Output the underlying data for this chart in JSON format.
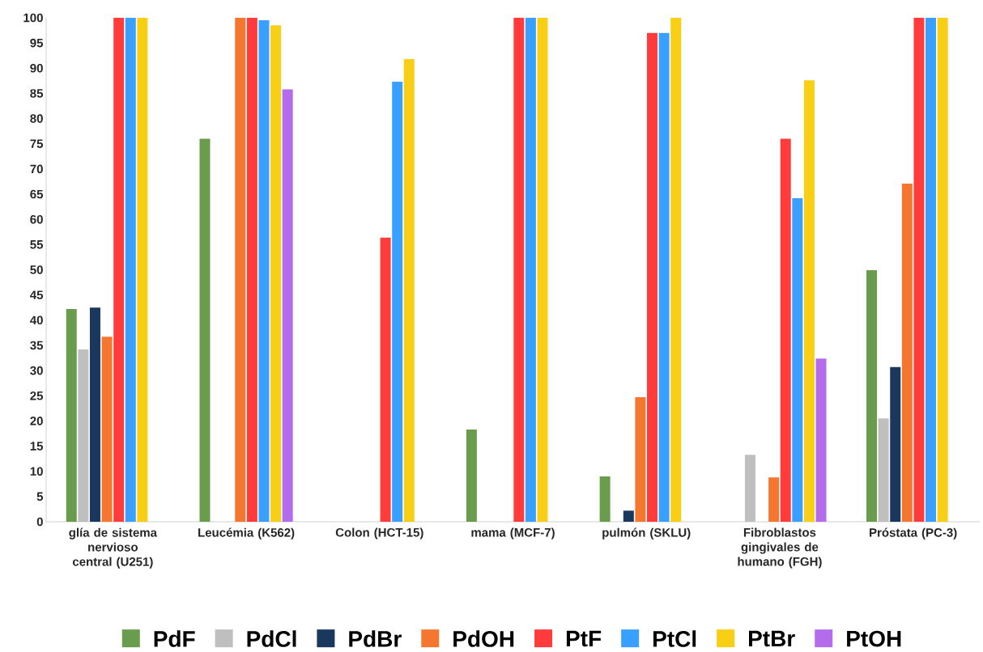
{
  "chart_data": {
    "type": "bar",
    "categories": [
      "glía de sistema nervioso central (U251)",
      "Leucémia (K562)",
      "Colon (HCT-15)",
      "mama (MCF-7)",
      "pulmón (SKLU)",
      "Fibroblastos gingivales de humano (FGH)",
      "Próstata (PC-3)"
    ],
    "series": [
      {
        "name": "PdF",
        "color": "#6a9c4e",
        "values": [
          42.2,
          76,
          null,
          18.3,
          9.0,
          null,
          49.9
        ]
      },
      {
        "name": "PdCl",
        "color": "#bfbfbf",
        "values": [
          34.2,
          null,
          null,
          null,
          null,
          13.3,
          20.5
        ]
      },
      {
        "name": "PdBr",
        "color": "#1a375e",
        "values": [
          42.5,
          null,
          null,
          null,
          2.2,
          null,
          30.7
        ]
      },
      {
        "name": "PdOH",
        "color": "#f5762e",
        "values": [
          36.7,
          100,
          null,
          null,
          24.7,
          8.8,
          67.1
        ]
      },
      {
        "name": "PtF",
        "color": "#ff3b3b",
        "values": [
          100,
          100,
          56.4,
          100,
          97,
          76,
          100
        ]
      },
      {
        "name": "PtCl",
        "color": "#39a0ff",
        "values": [
          100,
          99.5,
          87.3,
          100,
          97,
          64.2,
          100
        ]
      },
      {
        "name": "PtBr",
        "color": "#f9cf15",
        "values": [
          100,
          98.5,
          91.8,
          100,
          100,
          87.6,
          100
        ]
      },
      {
        "name": "PtOH",
        "color": "#b46ced",
        "values": [
          null,
          85.8,
          null,
          null,
          null,
          32.4,
          null
        ]
      }
    ],
    "ylim": [
      0,
      100
    ],
    "yticks": [
      0,
      5,
      10,
      15,
      20,
      25,
      30,
      35,
      40,
      45,
      50,
      55,
      60,
      65,
      70,
      75,
      80,
      85,
      90,
      95,
      100
    ],
    "grid": false,
    "legend": "bottom"
  }
}
